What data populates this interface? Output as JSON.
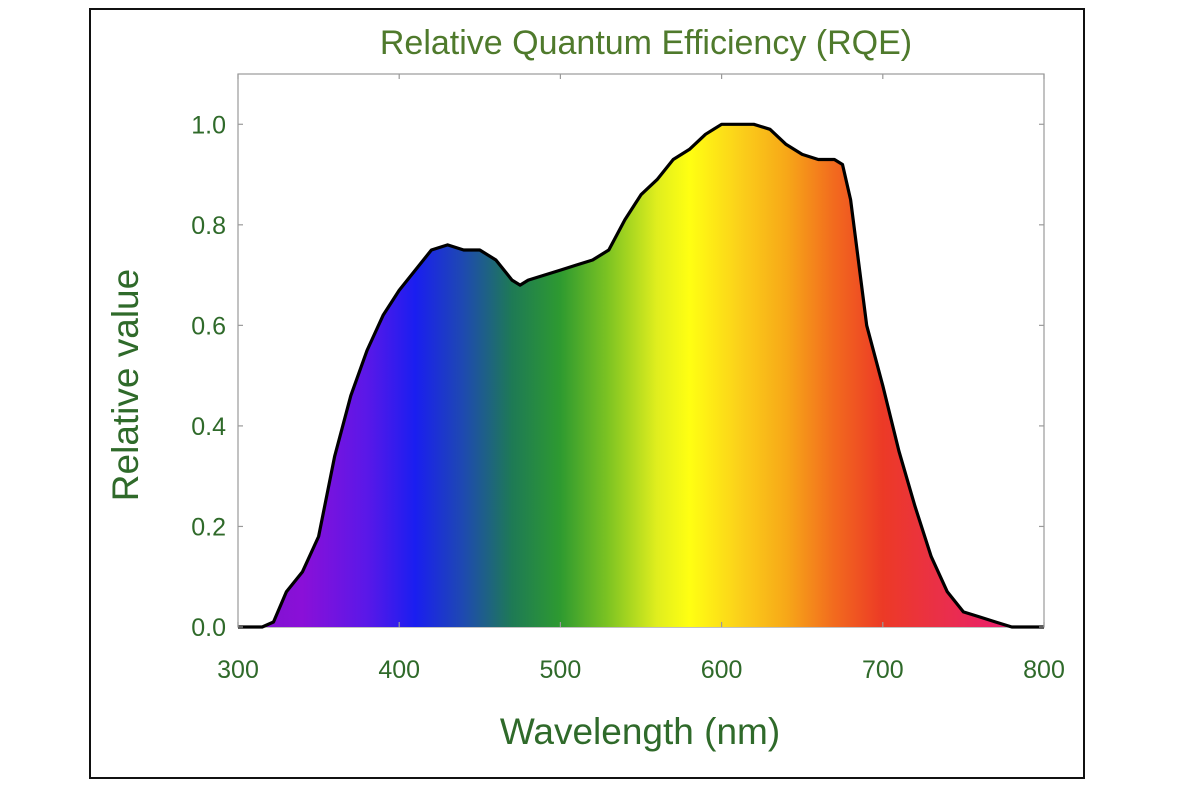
{
  "chart_data": {
    "type": "area",
    "title": "Relative Quantum Efficiency (RQE)",
    "xlabel": "Wavelength (nm)",
    "ylabel": "Relative value",
    "xlim": [
      300,
      800
    ],
    "ylim": [
      0,
      1.1
    ],
    "xticks": [
      300,
      400,
      500,
      600,
      700,
      800
    ],
    "xtick_labels": [
      "300",
      "400",
      "500",
      "600",
      "700",
      "800"
    ],
    "yticks": [
      0,
      0.2,
      0.4,
      0.6,
      0.8,
      1.0
    ],
    "ytick_labels": [
      "0.0",
      "0.2",
      "0.4",
      "0.6",
      "0.8",
      "1.0"
    ],
    "grid": false,
    "fill": "visible-spectrum gradient",
    "series": [
      {
        "name": "RQE",
        "x": [
          300,
          315,
          322,
          330,
          340,
          350,
          360,
          370,
          380,
          390,
          400,
          410,
          420,
          430,
          440,
          450,
          460,
          470,
          475,
          480,
          490,
          500,
          510,
          520,
          530,
          540,
          550,
          560,
          570,
          580,
          590,
          600,
          610,
          620,
          630,
          640,
          650,
          660,
          670,
          675,
          680,
          690,
          700,
          710,
          720,
          730,
          740,
          750,
          760,
          770,
          780,
          790,
          800
        ],
        "y": [
          0.0,
          0.0,
          0.01,
          0.07,
          0.11,
          0.18,
          0.34,
          0.46,
          0.55,
          0.62,
          0.67,
          0.71,
          0.75,
          0.76,
          0.75,
          0.75,
          0.73,
          0.69,
          0.68,
          0.69,
          0.7,
          0.71,
          0.72,
          0.73,
          0.75,
          0.81,
          0.86,
          0.89,
          0.93,
          0.95,
          0.98,
          1.0,
          1.0,
          1.0,
          0.99,
          0.96,
          0.94,
          0.93,
          0.93,
          0.92,
          0.85,
          0.6,
          0.48,
          0.35,
          0.24,
          0.14,
          0.07,
          0.03,
          0.02,
          0.01,
          0.0,
          0.0,
          0.0
        ]
      }
    ]
  },
  "colors": {
    "text": "#2f6a2a",
    "title": "#4f7a2c",
    "axis": "#9a9a9a",
    "curve": "#000000"
  }
}
